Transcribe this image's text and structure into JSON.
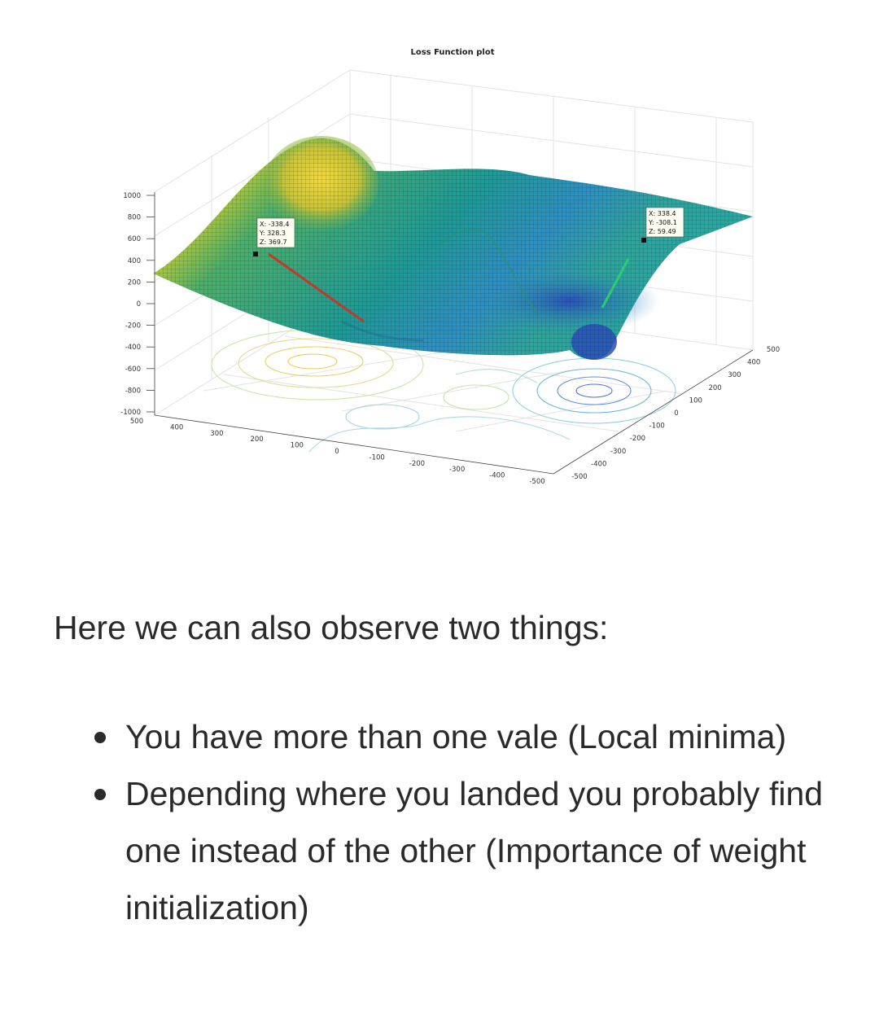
{
  "plot": {
    "title": "Loss Function plot",
    "z_ticks": [
      "1000",
      "800",
      "600",
      "400",
      "200",
      "0",
      "-200",
      "-400",
      "-600",
      "-800",
      "-1000"
    ],
    "x_ticks": [
      "500",
      "400",
      "300",
      "200",
      "100",
      "0",
      "-100",
      "-200",
      "-300",
      "-400",
      "-500"
    ],
    "y_ticks": [
      "-500",
      "-400",
      "-300",
      "-200",
      "-100",
      "0",
      "100",
      "200",
      "300",
      "400",
      "500"
    ],
    "datatips": [
      {
        "x": "X: -338.4",
        "y": "Y: 328.3",
        "z": "Z: 369.7"
      },
      {
        "x": "X: 338.4",
        "y": "Y: -308.1",
        "z": "Z: 59.49"
      }
    ],
    "colors": {
      "surface_high": "#f5d630",
      "surface_mid": "#2ea59b",
      "surface_low": "#2b63c4",
      "arrow_left": "#c0392b",
      "arrow_right": "#2ecc71"
    }
  },
  "article": {
    "lead": "Here we can also observe two things:",
    "bullets": [
      "You have more than one vale (Local minima)",
      "Depending where you landed you probably find one instead of the other (Importance of weight initialization)"
    ]
  }
}
